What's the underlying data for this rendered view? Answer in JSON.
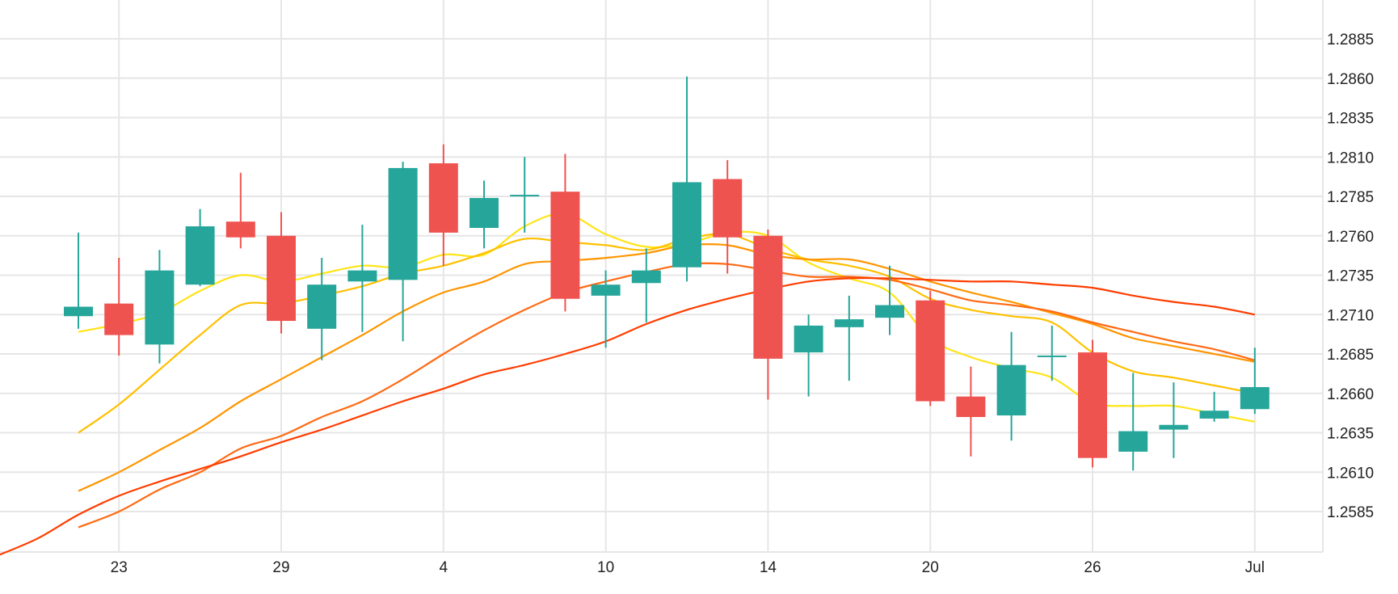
{
  "chart_data": {
    "type": "candlestick",
    "title": "",
    "xlabel": "",
    "ylabel": "",
    "x_ticks": [
      "23",
      "29",
      "4",
      "10",
      "14",
      "20",
      "26",
      "Jul"
    ],
    "y_ticks": [
      "1.2585",
      "1.2610",
      "1.2635",
      "1.2660",
      "1.2685",
      "1.2710",
      "1.2735",
      "1.2760",
      "1.2785",
      "1.2810",
      "1.2835",
      "1.2860",
      "1.2885"
    ],
    "ylim": [
      1.256,
      1.2905
    ],
    "grid": true,
    "y_axis_side": "right",
    "colors": {
      "up": "#26a69a",
      "down": "#ef5350",
      "grid": "#e6e6e6"
    },
    "candles": [
      {
        "open": 1.2709,
        "high": 1.2762,
        "low": 1.2701,
        "close": 1.2715
      },
      {
        "open": 1.2717,
        "high": 1.2746,
        "low": 1.2684,
        "close": 1.2697
      },
      {
        "open": 1.2691,
        "high": 1.2751,
        "low": 1.2679,
        "close": 1.2738
      },
      {
        "open": 1.2729,
        "high": 1.2777,
        "low": 1.2728,
        "close": 1.2766
      },
      {
        "open": 1.2769,
        "high": 1.28,
        "low": 1.2752,
        "close": 1.2759
      },
      {
        "open": 1.276,
        "high": 1.2775,
        "low": 1.2698,
        "close": 1.2706
      },
      {
        "open": 1.2701,
        "high": 1.2746,
        "low": 1.2681,
        "close": 1.2729
      },
      {
        "open": 1.2731,
        "high": 1.2767,
        "low": 1.2699,
        "close": 1.2738
      },
      {
        "open": 1.2732,
        "high": 1.2807,
        "low": 1.2693,
        "close": 1.2803
      },
      {
        "open": 1.2806,
        "high": 1.2818,
        "low": 1.2741,
        "close": 1.2762
      },
      {
        "open": 1.2765,
        "high": 1.2795,
        "low": 1.2752,
        "close": 1.2784
      },
      {
        "open": 1.2785,
        "high": 1.281,
        "low": 1.2762,
        "close": 1.2786
      },
      {
        "open": 1.2788,
        "high": 1.2812,
        "low": 1.2712,
        "close": 1.272
      },
      {
        "open": 1.2722,
        "high": 1.2738,
        "low": 1.2689,
        "close": 1.2729
      },
      {
        "open": 1.273,
        "high": 1.2752,
        "low": 1.2705,
        "close": 1.2738
      },
      {
        "open": 1.274,
        "high": 1.2861,
        "low": 1.2731,
        "close": 1.2794
      },
      {
        "open": 1.2796,
        "high": 1.2808,
        "low": 1.2736,
        "close": 1.2759
      },
      {
        "open": 1.276,
        "high": 1.2764,
        "low": 1.2656,
        "close": 1.2682
      },
      {
        "open": 1.2686,
        "high": 1.271,
        "low": 1.2658,
        "close": 1.2703
      },
      {
        "open": 1.2702,
        "high": 1.2722,
        "low": 1.2668,
        "close": 1.2707
      },
      {
        "open": 1.2708,
        "high": 1.2741,
        "low": 1.2697,
        "close": 1.2716
      },
      {
        "open": 1.2719,
        "high": 1.2725,
        "low": 1.2652,
        "close": 1.2655
      },
      {
        "open": 1.2658,
        "high": 1.2677,
        "low": 1.262,
        "close": 1.2645
      },
      {
        "open": 1.2646,
        "high": 1.2699,
        "low": 1.263,
        "close": 1.2678
      },
      {
        "open": 1.2683,
        "high": 1.2703,
        "low": 1.2668,
        "close": 1.2684
      },
      {
        "open": 1.2686,
        "high": 1.2694,
        "low": 1.2613,
        "close": 1.2619
      },
      {
        "open": 1.2623,
        "high": 1.2673,
        "low": 1.2611,
        "close": 1.2636
      },
      {
        "open": 1.2637,
        "high": 1.2667,
        "low": 1.2619,
        "close": 1.264
      },
      {
        "open": 1.2644,
        "high": 1.2661,
        "low": 1.2642,
        "close": 1.2649
      },
      {
        "open": 1.265,
        "high": 1.2689,
        "low": 1.2647,
        "close": 1.2664
      }
    ],
    "series": [
      {
        "color": "#ffe417",
        "values": [
          1.2699,
          1.2704,
          1.2711,
          1.2725,
          1.2735,
          1.2731,
          1.2736,
          1.2741,
          1.274,
          1.2748,
          1.2748,
          1.2766,
          1.2774,
          1.2761,
          1.2753,
          1.2755,
          1.2762,
          1.276,
          1.2743,
          1.2733,
          1.2724,
          1.2695,
          1.2683,
          1.2676,
          1.267,
          1.2654,
          1.2652,
          1.2652,
          1.2647,
          1.2642
        ]
      },
      {
        "color": "#ffc000",
        "values": [
          1.2635,
          1.2653,
          1.2675,
          1.2697,
          1.2716,
          1.2717,
          1.2722,
          1.2728,
          1.2736,
          1.2741,
          1.2749,
          1.2758,
          1.2756,
          1.2754,
          1.2751,
          1.2758,
          1.2761,
          1.2752,
          1.2745,
          1.2741,
          1.2734,
          1.272,
          1.2713,
          1.2709,
          1.2705,
          1.2686,
          1.2674,
          1.267,
          1.2665,
          1.266
        ]
      },
      {
        "color": "#ff9500",
        "values": [
          1.2598,
          1.261,
          1.2624,
          1.2638,
          1.2655,
          1.2669,
          1.2683,
          1.2697,
          1.2712,
          1.2724,
          1.2731,
          1.2742,
          1.2744,
          1.2746,
          1.2749,
          1.2754,
          1.2754,
          1.2748,
          1.2745,
          1.2745,
          1.2739,
          1.2731,
          1.2724,
          1.2718,
          1.2711,
          1.2704,
          1.2695,
          1.269,
          1.2685,
          1.268
        ]
      },
      {
        "color": "#ff6a13",
        "values": [
          1.2575,
          1.2585,
          1.2599,
          1.261,
          1.2625,
          1.2633,
          1.2645,
          1.2655,
          1.2669,
          1.2685,
          1.27,
          1.2713,
          1.2724,
          1.2731,
          1.2737,
          1.2742,
          1.2742,
          1.2738,
          1.2734,
          1.2734,
          1.2732,
          1.2726,
          1.2719,
          1.2716,
          1.2712,
          1.2705,
          1.2699,
          1.2693,
          1.2688,
          1.2681
        ]
      },
      {
        "color": "#ff3d00",
        "values": [
          1.2557,
          1.2568,
          1.2583,
          1.2595,
          1.2604,
          1.2612,
          1.262,
          1.2629,
          1.2637,
          1.2646,
          1.2655,
          1.2663,
          1.2672,
          1.2678,
          1.2685,
          1.2693,
          1.2704,
          1.2713,
          1.272,
          1.2726,
          1.2731,
          1.2733,
          1.2733,
          1.2732,
          1.2731,
          1.2731,
          1.2729,
          1.2727,
          1.2722,
          1.2718,
          1.2715,
          1.271
        ]
      }
    ]
  }
}
